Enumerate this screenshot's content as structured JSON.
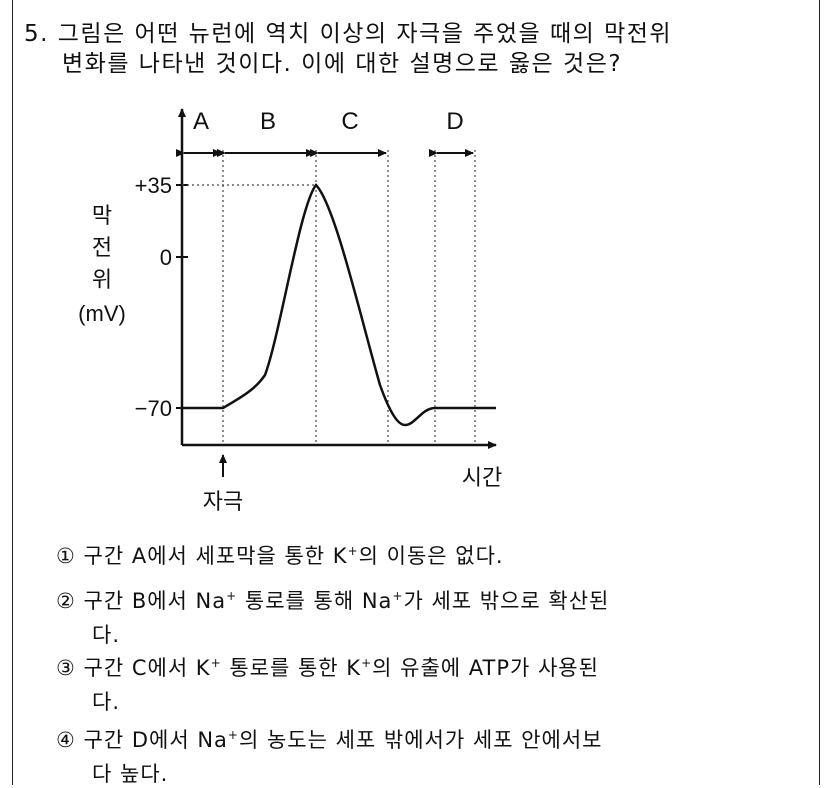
{
  "question": {
    "line1": "5. 그림은 어떤 뉴런에 역치 이상의 자극을 주었을 때의 막전위",
    "line2": "변화를 나타낸 것이다. 이에 대한 설명으로 옳은 것은?"
  },
  "diagram": {
    "segments": [
      "A",
      "B",
      "C",
      "D"
    ],
    "y_ticks": [
      "+35",
      "0",
      "−70"
    ],
    "ylabel_chars": [
      "막",
      "전",
      "위"
    ],
    "ylabel_unit": "(mV)",
    "xlabel": "시간",
    "stimulus_label": "자극"
  },
  "options": [
    {
      "num": "①",
      "pre": "구간 A에서 세포막을 통한 K",
      "sup": "+",
      "post": "의 이동은 없다.",
      "cont": ""
    },
    {
      "num": "②",
      "pre": "구간 B에서 Na",
      "sup": "+",
      "mid": " 통로를 통해 Na",
      "sup2": "+",
      "post": "가 세포 밖으로 확산된",
      "cont": "다."
    },
    {
      "num": "③",
      "pre": "구간 C에서 K",
      "sup": "+",
      "mid": " 통로를 통한 K",
      "sup2": "+",
      "post": "의 유출에 ATP가 사용된",
      "cont": "다."
    },
    {
      "num": "④",
      "pre": "구간 D에서 Na",
      "sup": "+",
      "post": "의 농도는 세포 밖에서가 세포 안에서보",
      "cont": "다 높다."
    }
  ]
}
